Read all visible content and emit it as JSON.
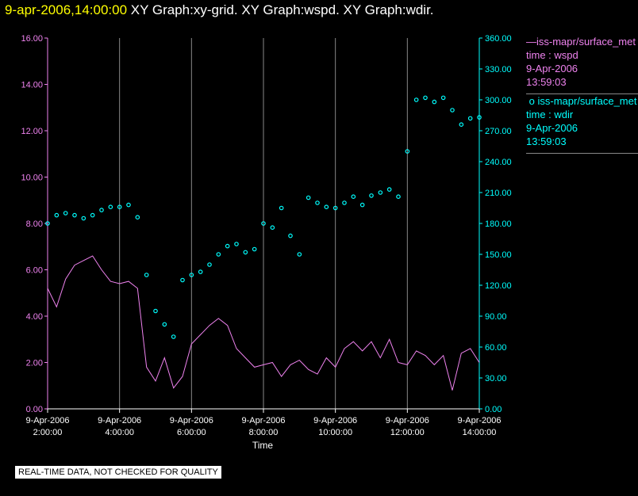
{
  "header": {
    "timestamp": "9-apr-2006,14:00:00",
    "graphs": "XY Graph:xy-grid.  XY Graph:wspd.  XY Graph:wdir."
  },
  "legend": {
    "series1": {
      "name": "iss-mapr/surface_met",
      "var": "time : wspd",
      "date": "9-Apr-2006",
      "time": "13:59:03",
      "marker": "—"
    },
    "series2": {
      "name": "iss-mapr/surface_met",
      "var": "time : wdir",
      "date": "9-Apr-2006",
      "time": "13:59:03",
      "marker": "o"
    }
  },
  "footer": {
    "text": "REAL-TIME DATA, NOT CHECKED FOR QUALITY"
  },
  "colors": {
    "wspd": "#ee82ee",
    "wdir": "#00ffff",
    "grid": "#888888",
    "background": "#000000",
    "title_time": "#ffff00"
  },
  "chart_data": {
    "type": "line",
    "xlabel": "Time",
    "xlim": [
      2.0,
      14.0
    ],
    "x_ticks": [
      {
        "date": "9-Apr-2006",
        "time": "2:00:00",
        "hour": 2
      },
      {
        "date": "9-Apr-2006",
        "time": "4:00:00",
        "hour": 4
      },
      {
        "date": "9-Apr-2006",
        "time": "6:00:00",
        "hour": 6
      },
      {
        "date": "9-Apr-2006",
        "time": "8:00:00",
        "hour": 8
      },
      {
        "date": "9-Apr-2006",
        "time": "10:00:00",
        "hour": 10
      },
      {
        "date": "9-Apr-2006",
        "time": "12:00:00",
        "hour": 12
      },
      {
        "date": "9-Apr-2006",
        "time": "14:00:00",
        "hour": 14
      }
    ],
    "y_left": {
      "range": [
        0,
        16
      ],
      "ticks": [
        "0.00",
        "2.00",
        "4.00",
        "6.00",
        "8.00",
        "10.00",
        "12.00",
        "14.00",
        "16.00"
      ]
    },
    "y_right": {
      "range": [
        0,
        360
      ],
      "ticks": [
        "0.00",
        "30.00",
        "60.00",
        "90.00",
        "120.00",
        "150.00",
        "180.00",
        "210.00",
        "240.00",
        "270.00",
        "300.00",
        "330.00",
        "360.00"
      ]
    },
    "grid": "vertical",
    "legend_position": "right",
    "series": [
      {
        "name": "iss-mapr/surface_met time : wspd",
        "axis": "left",
        "style": "line",
        "x": [
          2.0,
          2.25,
          2.5,
          2.75,
          3.0,
          3.25,
          3.5,
          3.75,
          4.0,
          4.25,
          4.5,
          4.75,
          5.0,
          5.25,
          5.5,
          5.75,
          6.0,
          6.25,
          6.5,
          6.75,
          7.0,
          7.25,
          7.5,
          7.75,
          8.0,
          8.25,
          8.5,
          8.75,
          9.0,
          9.25,
          9.5,
          9.75,
          10.0,
          10.25,
          10.5,
          10.75,
          11.0,
          11.25,
          11.5,
          11.75,
          12.0,
          12.25,
          12.5,
          12.75,
          13.0,
          13.25,
          13.5,
          13.75,
          14.0
        ],
        "y": [
          5.2,
          4.4,
          5.6,
          6.2,
          6.4,
          6.6,
          6.0,
          5.5,
          5.4,
          5.5,
          5.2,
          1.8,
          1.2,
          2.2,
          0.9,
          1.4,
          2.8,
          3.2,
          3.6,
          3.9,
          3.6,
          2.6,
          2.2,
          1.8,
          1.9,
          2.0,
          1.4,
          1.9,
          2.1,
          1.7,
          1.5,
          2.2,
          1.8,
          2.6,
          2.9,
          2.5,
          2.9,
          2.2,
          3.0,
          2.0,
          1.9,
          2.5,
          2.3,
          1.9,
          2.3,
          0.8,
          2.4,
          2.6,
          2.0
        ]
      },
      {
        "name": "iss-mapr/surface_met time : wdir",
        "axis": "right",
        "style": "markers",
        "x": [
          2.0,
          2.25,
          2.5,
          2.75,
          3.0,
          3.25,
          3.5,
          3.75,
          4.0,
          4.25,
          4.5,
          4.75,
          5.0,
          5.25,
          5.5,
          5.75,
          6.0,
          6.25,
          6.5,
          6.75,
          7.0,
          7.25,
          7.5,
          7.75,
          8.0,
          8.25,
          8.5,
          8.75,
          9.0,
          9.25,
          9.5,
          9.75,
          10.0,
          10.25,
          10.5,
          10.75,
          11.0,
          11.25,
          11.5,
          11.75,
          12.0,
          12.25,
          12.5,
          12.75,
          13.0,
          13.25,
          13.5,
          13.75,
          14.0
        ],
        "y": [
          180,
          188,
          190,
          188,
          185,
          188,
          193,
          196,
          196,
          198,
          186,
          130,
          95,
          82,
          70,
          125,
          130,
          133,
          140,
          150,
          158,
          160,
          152,
          155,
          180,
          176,
          195,
          168,
          150,
          205,
          200,
          196,
          195,
          200,
          206,
          198,
          207,
          210,
          213,
          206,
          250,
          300,
          302,
          298,
          302,
          290,
          276,
          282,
          283
        ]
      }
    ]
  }
}
